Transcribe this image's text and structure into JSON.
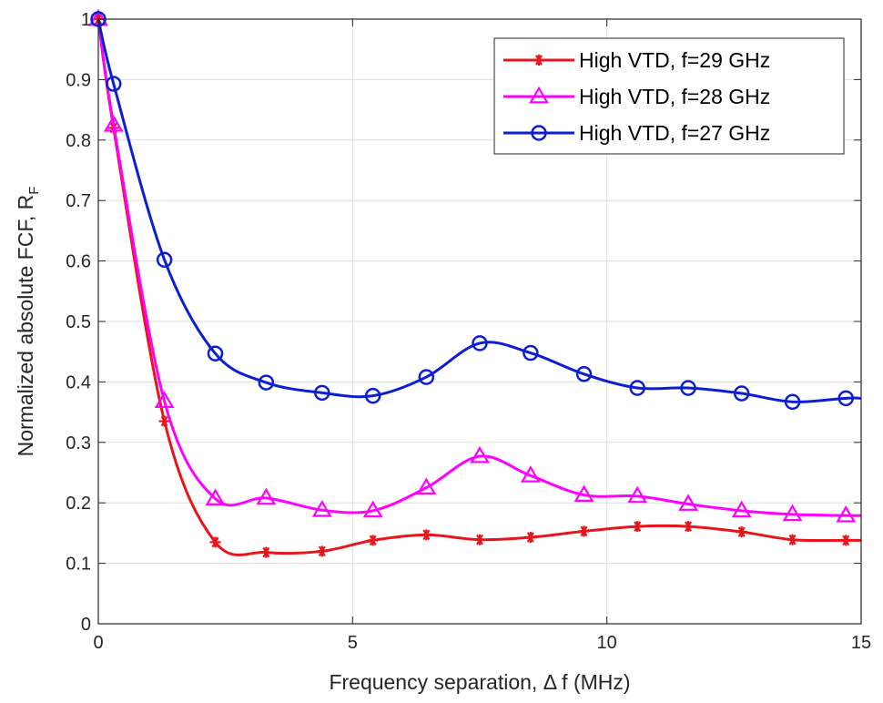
{
  "chart_data": {
    "type": "line",
    "title": "",
    "xlabel_main": "Frequency separation, ",
    "xlabel_symbol": "Δ",
    "xlabel_rest": " f (MHz)",
    "ylabel_main": "Normalized absolute FCF, R",
    "ylabel_sub": "F",
    "xlim": [
      0,
      15
    ],
    "ylim": [
      0,
      1
    ],
    "grid": true,
    "legend_position": "top-right",
    "xticks": [
      0,
      5,
      10,
      15
    ],
    "xtick_labels": [
      "0",
      "5",
      "10",
      "15"
    ],
    "yticks": [
      0,
      0.1,
      0.2,
      0.3,
      0.4,
      0.5,
      0.6,
      0.7,
      0.8,
      0.9,
      1
    ],
    "ytick_labels": [
      "0",
      "0.1",
      "0.2",
      "0.3",
      "0.4",
      "0.5",
      "0.6",
      "0.7",
      "0.8",
      "0.9",
      "1"
    ],
    "series": [
      {
        "name": "High VTD, f=29 GHz",
        "color": "#e8141a",
        "marker": "asterisk",
        "x": [
          0,
          0.3,
          1.3,
          2.3,
          3.3,
          4.4,
          5.4,
          6.45,
          7.5,
          8.5,
          9.55,
          10.6,
          11.6,
          12.65,
          13.65,
          14.7,
          15
        ],
        "values": [
          1.0,
          0.82,
          0.335,
          0.135,
          0.118,
          0.12,
          0.138,
          0.147,
          0.139,
          0.143,
          0.153,
          0.161,
          0.161,
          0.152,
          0.139,
          0.138,
          0.138
        ],
        "marker_indices": [
          0,
          1,
          2,
          3,
          4,
          5,
          6,
          7,
          8,
          9,
          10,
          11,
          12,
          13,
          14,
          15
        ]
      },
      {
        "name": "High VTD, f=28 GHz",
        "color": "#ff00ff",
        "marker": "triangle",
        "x": [
          0,
          0.3,
          1.3,
          2.3,
          3.3,
          4.4,
          5.4,
          6.45,
          7.5,
          8.5,
          9.55,
          10.6,
          11.6,
          12.65,
          13.65,
          14.7,
          15
        ],
        "values": [
          1.0,
          0.825,
          0.368,
          0.207,
          0.208,
          0.188,
          0.187,
          0.225,
          0.277,
          0.245,
          0.213,
          0.211,
          0.198,
          0.187,
          0.181,
          0.179,
          0.179
        ],
        "marker_indices": [
          0,
          1,
          2,
          3,
          4,
          5,
          6,
          7,
          8,
          9,
          10,
          11,
          12,
          13,
          14,
          15
        ]
      },
      {
        "name": "High VTD, f=27 GHz",
        "color": "#0b1ed6",
        "marker": "circle",
        "x": [
          0,
          0.3,
          1.3,
          2.3,
          3.3,
          4.4,
          5.4,
          6.45,
          7.5,
          8.5,
          9.55,
          10.6,
          11.6,
          12.65,
          13.65,
          14.7,
          15
        ],
        "values": [
          1.0,
          0.893,
          0.602,
          0.447,
          0.399,
          0.382,
          0.377,
          0.408,
          0.464,
          0.448,
          0.413,
          0.39,
          0.39,
          0.381,
          0.367,
          0.373,
          0.373
        ],
        "marker_indices": [
          0,
          1,
          2,
          3,
          4,
          5,
          6,
          7,
          8,
          9,
          10,
          11,
          12,
          13,
          14,
          15
        ]
      }
    ]
  }
}
